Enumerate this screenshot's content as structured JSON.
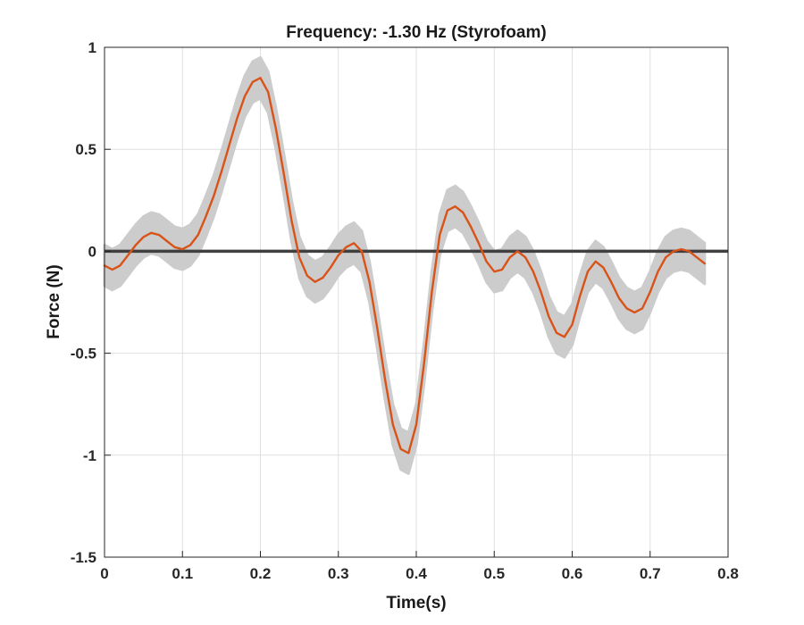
{
  "chart_data": {
    "type": "line",
    "title": "Frequency: -1.30 Hz (Styrofoam)",
    "xlabel": "Time(s)",
    "ylabel": "Force (N)",
    "xlim": [
      0,
      0.8
    ],
    "ylim": [
      -1.5,
      1
    ],
    "grid": true,
    "xticks": [
      0,
      0.1,
      0.2,
      0.3,
      0.4,
      0.5,
      0.6,
      0.7,
      0.8
    ],
    "xtick_labels": [
      "0",
      "0.1",
      "0.2",
      "0.3",
      "0.4",
      "0.5",
      "0.6",
      "0.7",
      "0.8"
    ],
    "yticks": [
      1,
      0.5,
      0,
      -0.5,
      -1,
      -1.5
    ],
    "ytick_labels": [
      "1",
      "0.5",
      "0",
      "-0.5",
      "-1",
      "-1.5"
    ],
    "reference_line": {
      "y": 0,
      "x_range": [
        0,
        0.8
      ],
      "color": "#404040"
    },
    "series": [
      {
        "style": "mean-line",
        "color": "#d95319",
        "band_color": "#cccccc",
        "band_halfwidth": 0.1,
        "x": [
          0.0,
          0.01,
          0.02,
          0.03,
          0.04,
          0.05,
          0.06,
          0.07,
          0.08,
          0.09,
          0.1,
          0.11,
          0.12,
          0.13,
          0.14,
          0.15,
          0.16,
          0.17,
          0.18,
          0.19,
          0.2,
          0.21,
          0.22,
          0.23,
          0.24,
          0.25,
          0.26,
          0.27,
          0.28,
          0.29,
          0.3,
          0.31,
          0.32,
          0.33,
          0.34,
          0.35,
          0.36,
          0.37,
          0.38,
          0.39,
          0.4,
          0.41,
          0.42,
          0.43,
          0.44,
          0.45,
          0.46,
          0.47,
          0.48,
          0.49,
          0.5,
          0.51,
          0.52,
          0.53,
          0.54,
          0.55,
          0.56,
          0.57,
          0.58,
          0.59,
          0.6,
          0.61,
          0.62,
          0.63,
          0.64,
          0.65,
          0.66,
          0.67,
          0.68,
          0.69,
          0.7,
          0.71,
          0.72,
          0.73,
          0.74,
          0.75,
          0.76,
          0.77
        ],
        "y": [
          -0.07,
          -0.09,
          -0.07,
          -0.02,
          0.03,
          0.07,
          0.09,
          0.08,
          0.05,
          0.02,
          0.01,
          0.03,
          0.08,
          0.17,
          0.27,
          0.39,
          0.52,
          0.65,
          0.76,
          0.83,
          0.85,
          0.78,
          0.6,
          0.38,
          0.15,
          -0.03,
          -0.12,
          -0.15,
          -0.13,
          -0.08,
          -0.02,
          0.02,
          0.04,
          0.0,
          -0.15,
          -0.38,
          -0.63,
          -0.85,
          -0.97,
          -0.99,
          -0.85,
          -0.55,
          -0.2,
          0.08,
          0.2,
          0.22,
          0.19,
          0.12,
          0.04,
          -0.05,
          -0.1,
          -0.09,
          -0.03,
          0.0,
          -0.03,
          -0.1,
          -0.2,
          -0.32,
          -0.4,
          -0.42,
          -0.36,
          -0.22,
          -0.1,
          -0.05,
          -0.08,
          -0.15,
          -0.23,
          -0.28,
          -0.3,
          -0.28,
          -0.2,
          -0.1,
          -0.03,
          0.0,
          0.01,
          0.0,
          -0.03,
          -0.06
        ]
      }
    ]
  }
}
